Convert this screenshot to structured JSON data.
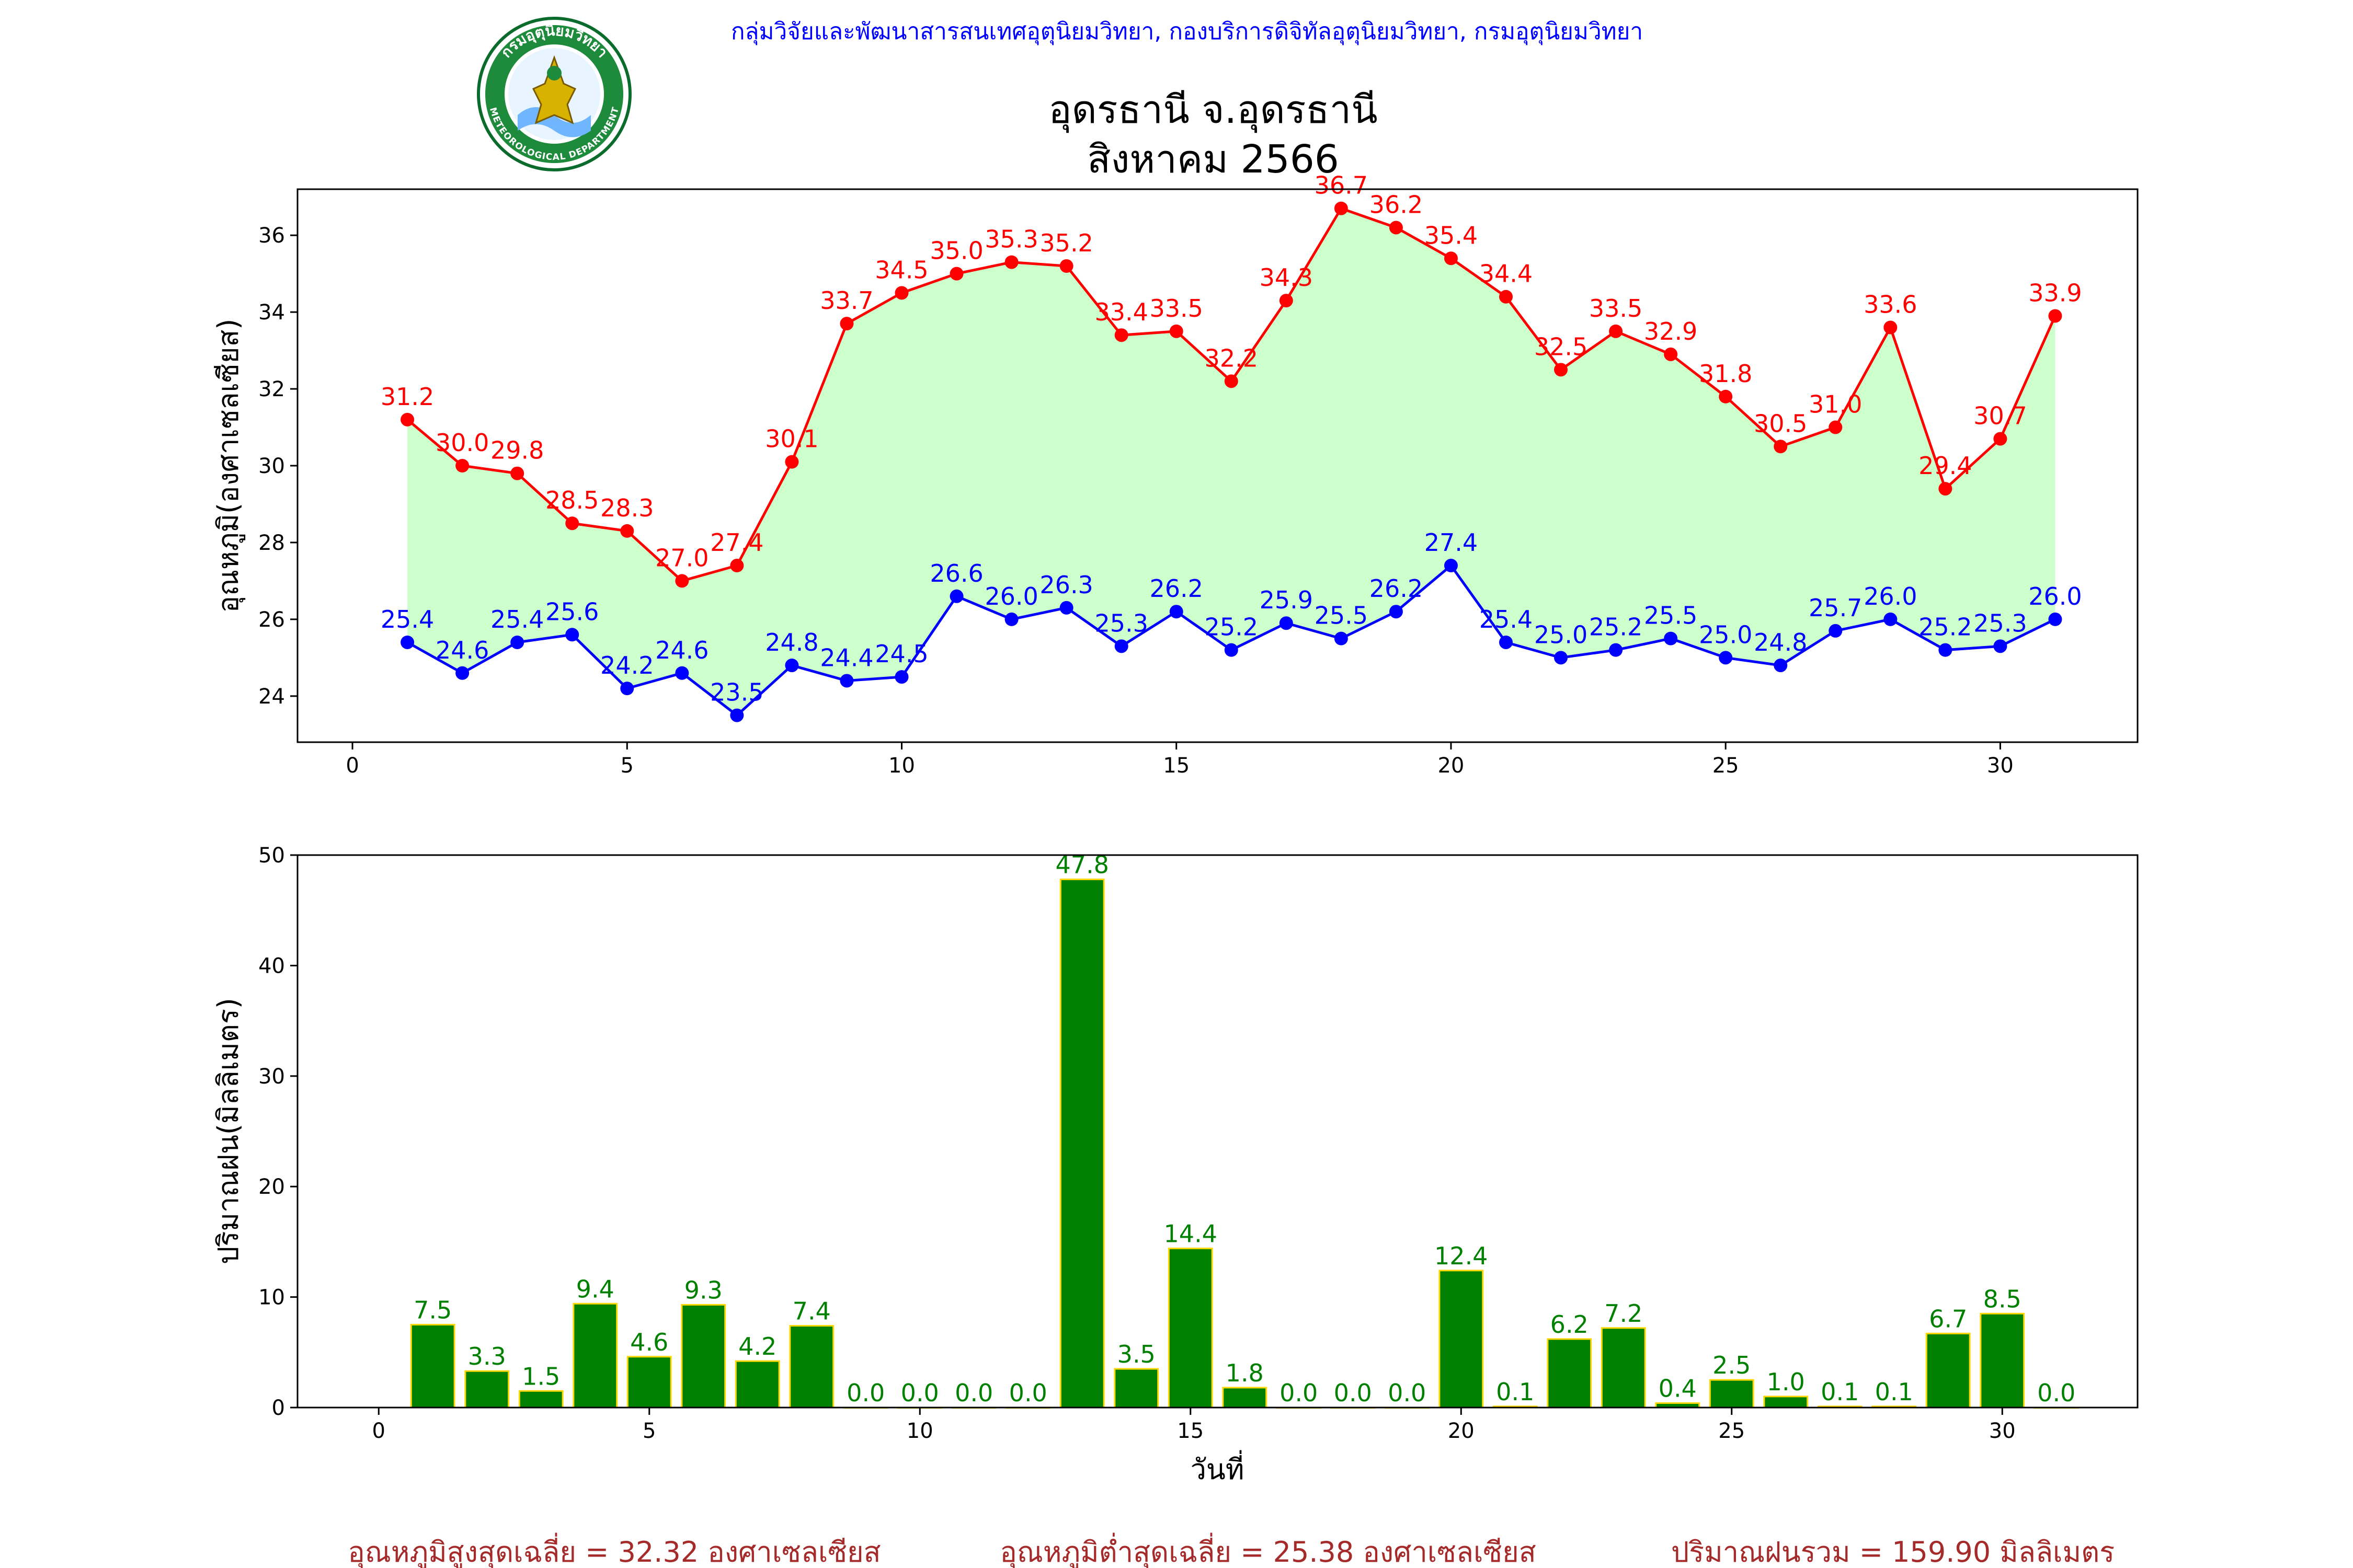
{
  "header": {
    "org_line": "กลุ่มวิจัยและพัฒนาสารสนเทศอุตุนิยมวิทยา, กองบริการดิจิทัลอุตุนิยมวิทยา, กรมอุตุนิยมวิทยา",
    "title_line1": "อุดรธานี จ.อุดรธานี",
    "title_line2": "สิงหาคม 2566",
    "logo_text": "กรมอุตุนิยมวิทยา",
    "logo_text_en": "METEOROLOGICAL DEPARTMENT"
  },
  "footer": {
    "avg_max": "อุณหภูมิสูงสุดเฉลี่ย = 32.32 องศาเซลเซียส",
    "avg_min": "อุณหภูมิต่ำสุดเฉลี่ย = 25.38 องศาเซลเซียส",
    "rain_total": "ปริมาณฝนรวม = 159.90 มิลลิเมตร"
  },
  "colors": {
    "max_line": "#ff0000",
    "min_line": "#0000ff",
    "fill": "#ccffcc",
    "bar_fill": "#008000",
    "bar_edge": "#ffd700",
    "header_text": "#0000ff",
    "footer_text": "#a52a2a"
  },
  "chart_data": [
    {
      "type": "line",
      "ylabel": "อุณหภูมิ(องศาเซลเซียส)",
      "xlabel": "",
      "xlim": [
        -1,
        32.5
      ],
      "ylim": [
        22.8,
        37.2
      ],
      "xticks": [
        0,
        5,
        10,
        15,
        20,
        25,
        30
      ],
      "yticks": [
        24,
        26,
        28,
        30,
        32,
        34,
        36
      ],
      "x": [
        1,
        2,
        3,
        4,
        5,
        6,
        7,
        8,
        9,
        10,
        11,
        12,
        13,
        14,
        15,
        16,
        17,
        18,
        19,
        20,
        21,
        22,
        23,
        24,
        25,
        26,
        27,
        28,
        29,
        30,
        31
      ],
      "series": [
        {
          "key": "max",
          "values": [
            31.2,
            30.0,
            29.8,
            28.5,
            28.3,
            27.0,
            27.4,
            30.1,
            33.7,
            34.5,
            35.0,
            35.3,
            35.2,
            33.4,
            33.5,
            32.2,
            34.3,
            36.7,
            36.2,
            35.4,
            34.4,
            32.5,
            33.5,
            32.9,
            31.8,
            30.5,
            31.0,
            33.6,
            29.4,
            30.7,
            33.9
          ]
        },
        {
          "key": "min",
          "values": [
            25.4,
            24.6,
            25.4,
            25.6,
            24.2,
            24.6,
            23.5,
            24.8,
            24.4,
            24.5,
            26.6,
            26.0,
            26.3,
            25.3,
            26.2,
            25.2,
            25.9,
            25.5,
            26.2,
            27.4,
            25.4,
            25.0,
            25.2,
            25.5,
            25.0,
            24.8,
            25.7,
            26.0,
            25.2,
            25.3,
            26.0
          ]
        }
      ],
      "grid": false
    },
    {
      "type": "bar",
      "ylabel": "ปริมาณฝน(มิลลิเมตร)",
      "xlabel": "วันที่",
      "xlim": [
        -1.5,
        32.5
      ],
      "ylim": [
        0,
        50
      ],
      "xticks": [
        0,
        5,
        10,
        15,
        20,
        25,
        30
      ],
      "yticks": [
        0,
        10,
        20,
        30,
        40,
        50
      ],
      "x": [
        1,
        2,
        3,
        4,
        5,
        6,
        7,
        8,
        9,
        10,
        11,
        12,
        13,
        14,
        15,
        16,
        17,
        18,
        19,
        20,
        21,
        22,
        23,
        24,
        25,
        26,
        27,
        28,
        29,
        30,
        31
      ],
      "values": [
        7.5,
        3.3,
        1.5,
        9.4,
        4.6,
        9.3,
        4.2,
        7.4,
        0.0,
        0.0,
        0.0,
        0.0,
        47.8,
        3.5,
        14.4,
        1.8,
        0.0,
        0.0,
        0.0,
        12.4,
        0.1,
        6.2,
        7.2,
        0.4,
        2.5,
        1.0,
        0.1,
        0.1,
        6.7,
        8.5,
        0.0
      ],
      "grid": false
    }
  ]
}
